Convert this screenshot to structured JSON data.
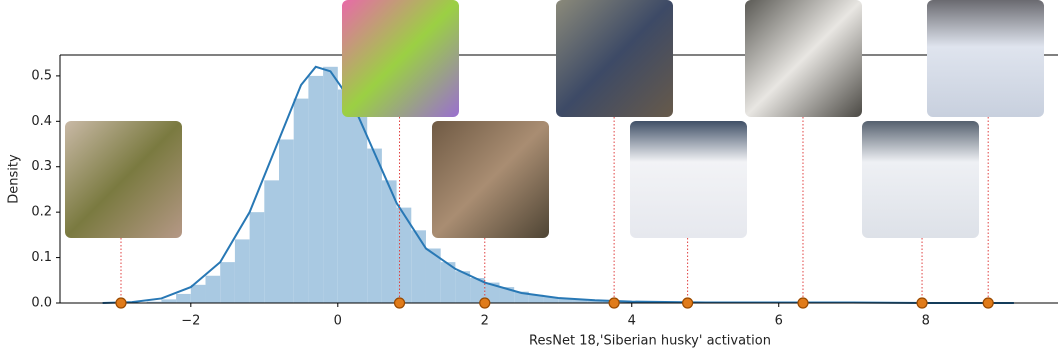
{
  "chart_data": {
    "type": "histogram",
    "xlabel": "ResNet 18,'Siberian husky' activation",
    "ylabel": "Density",
    "bins": [
      -2.6,
      -2.4,
      -2.2,
      -2.0,
      -1.8,
      -1.6,
      -1.4,
      -1.2,
      -1.0,
      -0.8,
      -0.6,
      -0.4,
      -0.2,
      0.0,
      0.2,
      0.4,
      0.6,
      0.8,
      1.0,
      1.2,
      1.4,
      1.6,
      1.8,
      2.0,
      2.2,
      2.4,
      2.6,
      2.8,
      3.0,
      3.2,
      3.4,
      3.6,
      3.8,
      4.0
    ],
    "values": [
      0.003,
      0.008,
      0.02,
      0.04,
      0.06,
      0.09,
      0.14,
      0.2,
      0.27,
      0.36,
      0.45,
      0.5,
      0.52,
      0.47,
      0.41,
      0.34,
      0.27,
      0.21,
      0.16,
      0.12,
      0.09,
      0.07,
      0.055,
      0.045,
      0.035,
      0.025,
      0.018,
      0.013,
      0.01,
      0.007,
      0.005,
      0.004,
      0.003
    ],
    "color": "#a9c9e2",
    "kde": {
      "color": "#2878b5",
      "x": [
        -3.2,
        -2.8,
        -2.4,
        -2.0,
        -1.6,
        -1.2,
        -0.8,
        -0.5,
        -0.3,
        -0.1,
        0.2,
        0.5,
        0.8,
        1.2,
        1.6,
        2.0,
        2.5,
        3.0,
        3.5,
        4.0,
        5.0,
        6.0,
        7.0,
        8.0,
        9.2
      ],
      "y": [
        0,
        0.002,
        0.01,
        0.035,
        0.09,
        0.2,
        0.36,
        0.48,
        0.52,
        0.51,
        0.44,
        0.33,
        0.22,
        0.12,
        0.075,
        0.045,
        0.022,
        0.011,
        0.006,
        0.003,
        0.001,
        0.001,
        0.001,
        0,
        0
      ]
    },
    "markers": {
      "color": "#e07b1a",
      "x": [
        -2.95,
        0.84,
        2.0,
        3.76,
        4.76,
        6.33,
        7.95,
        8.85
      ],
      "y": [
        0,
        0,
        0,
        0,
        0,
        0,
        0,
        0
      ]
    },
    "xlim": [
      -3.78,
      9.8
    ],
    "ylim": [
      0,
      0.546
    ],
    "xticks": [
      {
        "value": -2,
        "label": "−2"
      },
      0,
      2,
      4,
      6,
      8
    ],
    "yticks": [
      {
        "value": 0,
        "label": "0.0"
      },
      {
        "value": 0.1,
        "label": "0.1"
      },
      {
        "value": 0.2,
        "label": "0.2"
      },
      {
        "value": 0.3,
        "label": "0.3"
      },
      {
        "value": 0.4,
        "label": "0.4"
      },
      {
        "value": 0.5,
        "label": "0.5"
      }
    ]
  }
}
